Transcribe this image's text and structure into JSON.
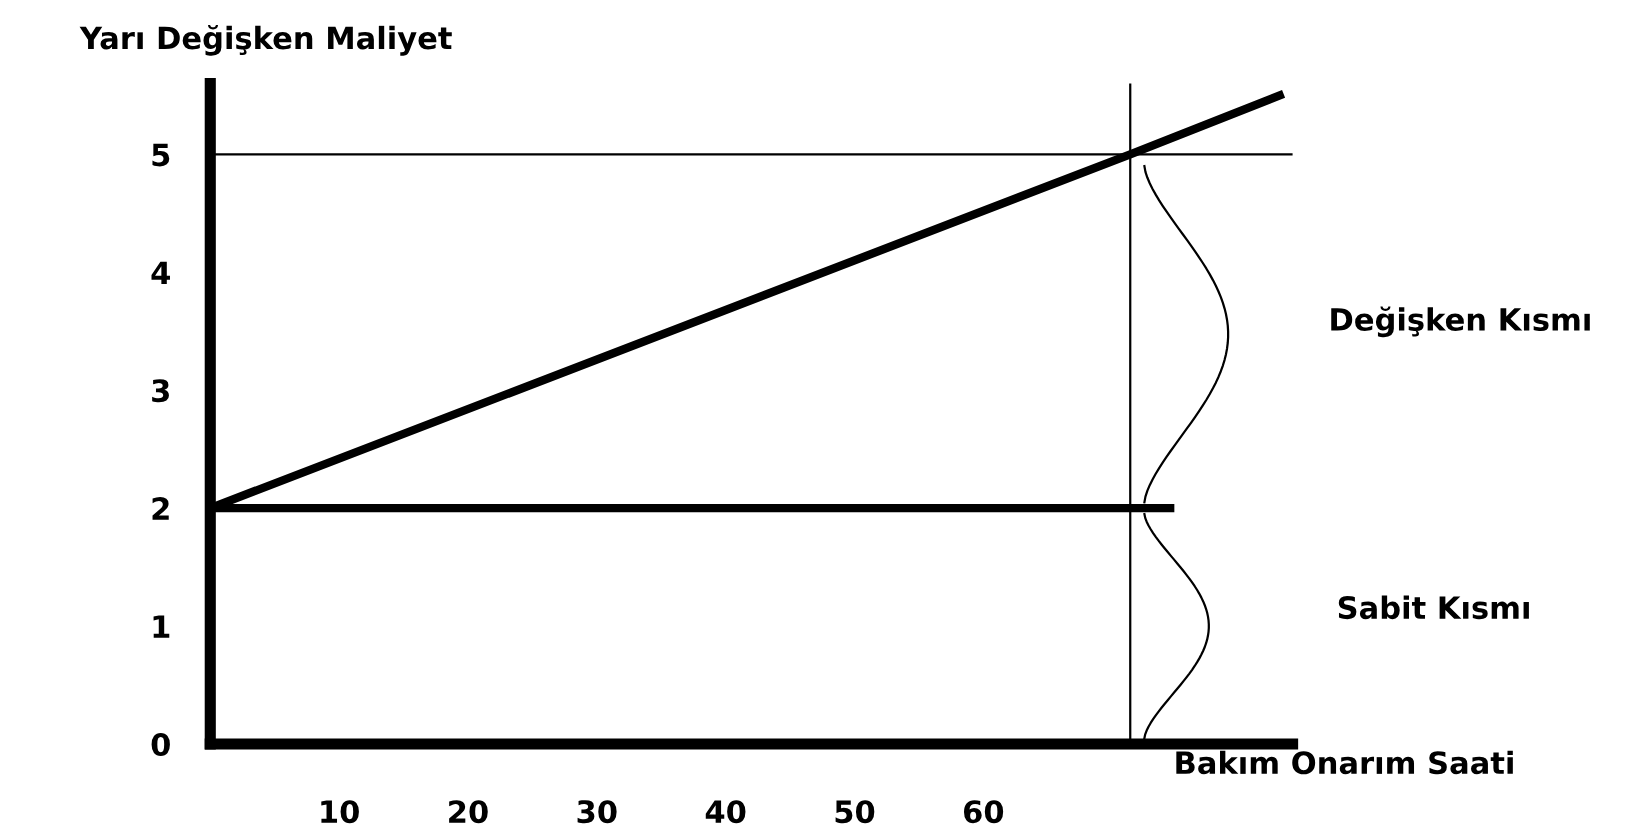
{
  "chart_data": {
    "type": "line",
    "title": "Yarı Değişken Maliyet",
    "xlabel": "Bakım Onarım Saati",
    "series": [
      {
        "x": [
          0,
          71.4,
          83
        ],
        "values": [
          2,
          5,
          5.5
        ],
        "color": "#000000"
      },
      {
        "x": [
          0,
          74.5
        ],
        "values": [
          2,
          2
        ],
        "color": "#000000"
      }
    ],
    "xlim": [
      0,
      84
    ],
    "ylim": [
      0,
      5.6
    ],
    "xticks": [
      10,
      20,
      30,
      40,
      50,
      60
    ],
    "yticks": [
      0,
      1,
      2,
      3,
      4,
      5
    ],
    "ref_lines": [
      {
        "axis": "y",
        "value": 5,
        "color": "#000000"
      },
      {
        "axis": "x",
        "value": 71.4,
        "color": "#000000"
      }
    ],
    "annotations": [
      "Değişken Kısmı",
      "Sabit Kısmı"
    ],
    "grid": false,
    "marker": "none",
    "line_style": "solid"
  }
}
